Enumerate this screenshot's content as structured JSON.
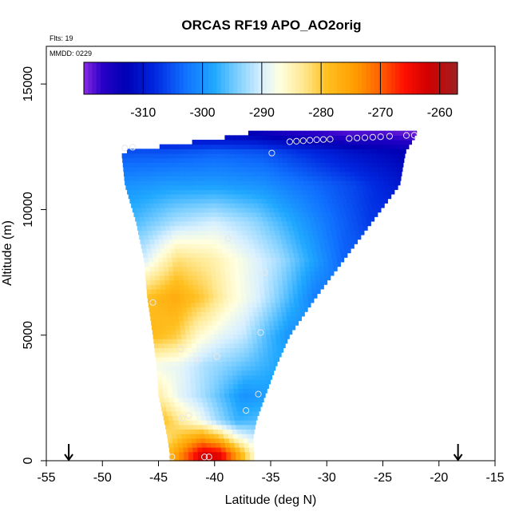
{
  "chart_data": {
    "type": "heatmap",
    "title": "ORCAS RF19 APO_AO2orig",
    "flights_label": "Flts: 19",
    "date_label": "MMDD: 0229",
    "xlabel": "Latitude (deg N)",
    "ylabel": "Altitude (m)",
    "xlim": [
      -55,
      -15
    ],
    "ylim": [
      0,
      16500
    ],
    "x_ticks": [
      -55,
      -50,
      -45,
      -40,
      -35,
      -30,
      -25,
      -20,
      -15
    ],
    "x_tick_labels": [
      "-55",
      "-50",
      "-45",
      "-40",
      "-35",
      "-30",
      "-25",
      "-20",
      "-15"
    ],
    "y_ticks": [
      0,
      5000,
      10000,
      15000
    ],
    "y_tick_labels": [
      "0",
      "5000",
      "10000",
      "15000"
    ],
    "colorbar": {
      "min": -320,
      "max": -257,
      "ticks": [
        -310,
        -300,
        -290,
        -280,
        -270,
        -260
      ],
      "tick_labels": [
        "-310",
        "-300",
        "-290",
        "-280",
        "-270",
        "-260"
      ],
      "stops": [
        {
          "v": -320,
          "color": "#8a2be2"
        },
        {
          "v": -317,
          "color": "#2a00c8"
        },
        {
          "v": -313,
          "color": "#0000b4"
        },
        {
          "v": -308,
          "color": "#0028e0"
        },
        {
          "v": -303,
          "color": "#1070ff"
        },
        {
          "v": -298,
          "color": "#20a8ff"
        },
        {
          "v": -294,
          "color": "#80d0ff"
        },
        {
          "v": -290,
          "color": "#d8f0ff"
        },
        {
          "v": -287,
          "color": "#ffffe0"
        },
        {
          "v": -283,
          "color": "#ffe890"
        },
        {
          "v": -279,
          "color": "#ffc020"
        },
        {
          "v": -274,
          "color": "#ff9a00"
        },
        {
          "v": -270,
          "color": "#ff6000"
        },
        {
          "v": -266,
          "color": "#ff1000"
        },
        {
          "v": -262,
          "color": "#d00000"
        },
        {
          "v": -257,
          "color": "#a02020"
        }
      ]
    },
    "markers": [
      {
        "lat": -53,
        "alt": 0
      },
      {
        "lat": -18.3,
        "alt": 0
      }
    ],
    "points": [
      {
        "lat": -48.0,
        "alt": 12450
      },
      {
        "lat": -47.3,
        "alt": 12480
      },
      {
        "lat": -34.9,
        "alt": 12250
      },
      {
        "lat": -33.3,
        "alt": 12700
      },
      {
        "lat": -32.7,
        "alt": 12720
      },
      {
        "lat": -32.1,
        "alt": 12740
      },
      {
        "lat": -31.5,
        "alt": 12760
      },
      {
        "lat": -30.9,
        "alt": 12780
      },
      {
        "lat": -30.3,
        "alt": 12790
      },
      {
        "lat": -29.7,
        "alt": 12800
      },
      {
        "lat": -28.0,
        "alt": 12830
      },
      {
        "lat": -27.3,
        "alt": 12850
      },
      {
        "lat": -26.6,
        "alt": 12860
      },
      {
        "lat": -25.9,
        "alt": 12880
      },
      {
        "lat": -25.2,
        "alt": 12900
      },
      {
        "lat": -24.4,
        "alt": 12920
      },
      {
        "lat": -22.9,
        "alt": 12950
      },
      {
        "lat": -22.2,
        "alt": 12960
      },
      {
        "lat": -38.8,
        "alt": 8850
      },
      {
        "lat": -35.5,
        "alt": 7500
      },
      {
        "lat": -45.5,
        "alt": 6300
      },
      {
        "lat": -35.9,
        "alt": 5100
      },
      {
        "lat": -43.0,
        "alt": 4450
      },
      {
        "lat": -41.5,
        "alt": 4000
      },
      {
        "lat": -39.8,
        "alt": 4150
      },
      {
        "lat": -36.1,
        "alt": 2650
      },
      {
        "lat": -37.2,
        "alt": 2000
      },
      {
        "lat": -42.9,
        "alt": 1700
      },
      {
        "lat": -42.3,
        "alt": 1800
      },
      {
        "lat": -43.8,
        "alt": 150
      },
      {
        "lat": -40.9,
        "alt": 150
      },
      {
        "lat": -40.5,
        "alt": 150
      }
    ],
    "field": {
      "note_source": "APO field values per latitude band and altitude band",
      "bands": [
        {
          "alt": 13000,
          "lat": [
            -37,
            -22
          ],
          "values": [
            -313,
            -315,
            -317,
            -318,
            -318,
            -319
          ]
        },
        {
          "alt": 12300,
          "lat": [
            -48.3,
            -23
          ],
          "values": [
            -305,
            -305,
            -304,
            -305,
            -308,
            -311,
            -313
          ]
        },
        {
          "alt": 11000,
          "lat": [
            -48.0,
            -23.5
          ],
          "values": [
            -300,
            -299,
            -299,
            -300,
            -303,
            -306,
            -310
          ]
        },
        {
          "alt": 9500,
          "lat": [
            -47.0,
            -26.0
          ],
          "values": [
            -296,
            -292,
            -290,
            -293,
            -298,
            -303,
            -307
          ]
        },
        {
          "alt": 8000,
          "lat": [
            -46.3,
            -28.5
          ],
          "values": [
            -290,
            -282,
            -284,
            -288,
            -292,
            -298,
            -304
          ]
        },
        {
          "alt": 6500,
          "lat": [
            -46.0,
            -31.0
          ],
          "values": [
            -279,
            -276,
            -280,
            -286,
            -290,
            -296,
            -302
          ]
        },
        {
          "alt": 5000,
          "lat": [
            -45.5,
            -33.3
          ],
          "values": [
            -278,
            -280,
            -286,
            -289,
            -291,
            -296,
            -300
          ]
        },
        {
          "alt": 3800,
          "lat": [
            -45.2,
            -34.5
          ],
          "values": [
            -288,
            -289,
            -292,
            -294,
            -296,
            -298
          ]
        },
        {
          "alt": 2600,
          "lat": [
            -45.0,
            -35.5
          ],
          "values": [
            -284,
            -289,
            -292,
            -296,
            -300,
            -299
          ]
        },
        {
          "alt": 1600,
          "lat": [
            -44.5,
            -36.3
          ],
          "values": [
            -279,
            -284,
            -288,
            -293,
            -297,
            -296
          ]
        },
        {
          "alt": 900,
          "lat": [
            -44.2,
            -36.6
          ],
          "values": [
            -282,
            -278,
            -274,
            -278,
            -286,
            -290
          ]
        },
        {
          "alt": 300,
          "lat": [
            -44.0,
            -36.5
          ],
          "values": [
            -278,
            -270,
            -262,
            -264,
            -275,
            -286
          ]
        }
      ]
    }
  }
}
